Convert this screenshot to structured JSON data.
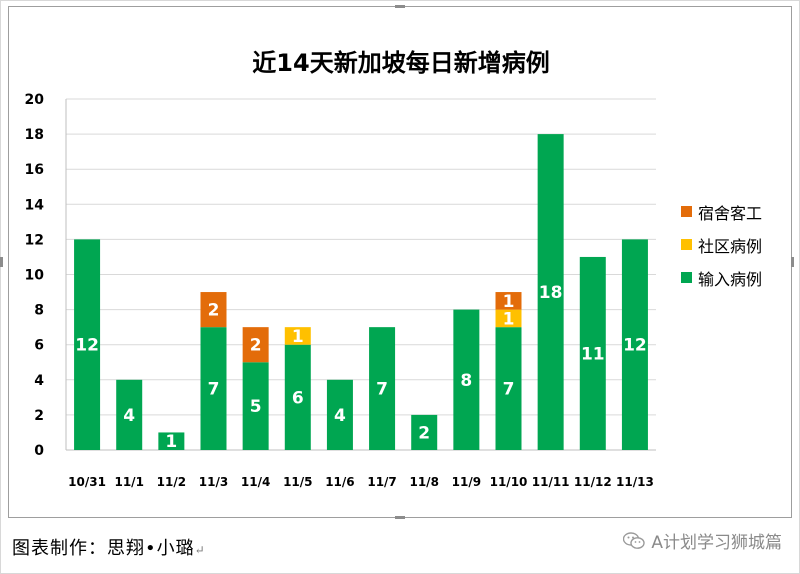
{
  "chart_data": {
    "type": "bar",
    "stacked": true,
    "title": "近14天新加坡每日新增病例",
    "categories": [
      "10/31",
      "11/1",
      "11/2",
      "11/3",
      "11/4",
      "11/5",
      "11/6",
      "11/7",
      "11/8",
      "11/9",
      "11/10",
      "11/11",
      "11/12",
      "11/13"
    ],
    "series": [
      {
        "name": "输入病例",
        "color": "#00a651",
        "values": [
          12,
          4,
          1,
          7,
          5,
          6,
          4,
          7,
          2,
          8,
          7,
          18,
          11,
          12
        ]
      },
      {
        "name": "社区病例",
        "color": "#ffc000",
        "values": [
          0,
          0,
          0,
          0,
          0,
          1,
          0,
          0,
          0,
          0,
          1,
          0,
          0,
          0
        ]
      },
      {
        "name": "宿舍客工",
        "color": "#e36c0a",
        "values": [
          0,
          0,
          0,
          2,
          2,
          0,
          0,
          0,
          0,
          0,
          1,
          0,
          0,
          0
        ]
      }
    ],
    "legend_order": [
      "宿舍客工",
      "社区病例",
      "输入病例"
    ],
    "ylim": [
      0,
      20
    ],
    "y_ticks": [
      0,
      2,
      4,
      6,
      8,
      10,
      12,
      14,
      16,
      18,
      20
    ],
    "grid": true,
    "legend_position": "right",
    "xlabel": "",
    "ylabel": ""
  },
  "footer": {
    "credit": "图表制作：思翔•小璐",
    "credit_mark": "↵",
    "watermark": "A计划学习狮城篇",
    "watermark_icon": "wechat-icon"
  }
}
